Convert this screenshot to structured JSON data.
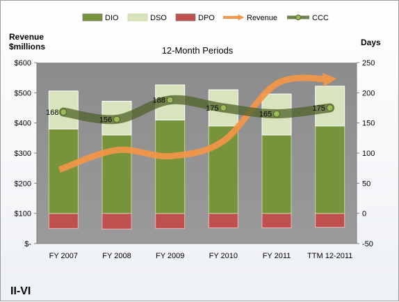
{
  "chart_data": {
    "type": "bar",
    "title": "12-Month Periods",
    "company": "II-VI",
    "left_axis": {
      "title_line1": "Revenue",
      "title_line2": "$millions",
      "ticks": [
        "$-",
        "$100",
        "$200",
        "$300",
        "$400",
        "$500",
        "$600"
      ],
      "range": [
        0,
        600
      ]
    },
    "right_axis": {
      "title": "Days",
      "ticks": [
        "-50",
        "0",
        "50",
        "100",
        "150",
        "200",
        "250"
      ],
      "range": [
        -50,
        250
      ]
    },
    "categories": [
      "FY 2007",
      "FY 2008",
      "FY 2009",
      "FY 2010",
      "FY 2011",
      "TTM 12-2011"
    ],
    "series": [
      {
        "name": "DIO",
        "axis": "right",
        "kind": "stacked-bar",
        "values": [
          140,
          130,
          155,
          145,
          130,
          145
        ]
      },
      {
        "name": "DSO",
        "axis": "right",
        "kind": "stacked-bar",
        "values": [
          63,
          56,
          58,
          60,
          68,
          66
        ]
      },
      {
        "name": "DPO",
        "axis": "right",
        "kind": "negative-bar",
        "values": [
          -25,
          -26,
          -25,
          -24,
          -24,
          -23
        ]
      },
      {
        "name": "Revenue",
        "axis": "left",
        "kind": "line",
        "values": [
          245,
          310,
          290,
          340,
          530,
          545
        ]
      },
      {
        "name": "CCC",
        "axis": "right",
        "kind": "line",
        "values": [
          168,
          156,
          188,
          175,
          165,
          175
        ]
      }
    ],
    "legend_position": "top",
    "grid": false,
    "colors": {
      "DIO": "#77933c",
      "DSO": "#d7e4bd",
      "DPO": "#c0504d",
      "Revenue": "#f79646",
      "CCC": "#4f6228",
      "plot_bg": "#8e8e8e"
    }
  }
}
